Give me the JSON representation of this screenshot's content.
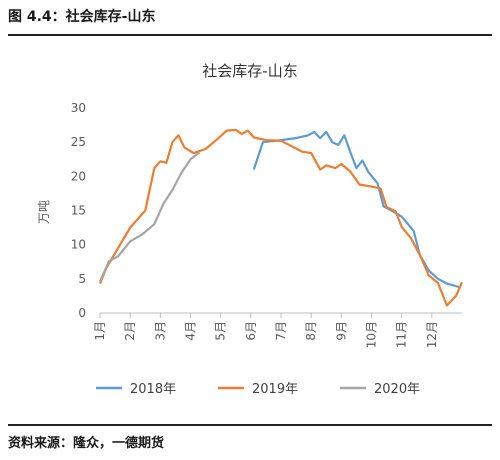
{
  "header": {
    "caption": "图 4.4：社会库存-山东"
  },
  "footer": {
    "source": "资料来源：隆众，一德期货"
  },
  "chart_data": {
    "type": "line",
    "title": "社会库存-山东",
    "ylabel": "万吨",
    "ylim": [
      0,
      30
    ],
    "yticks": [
      0,
      5,
      10,
      15,
      20,
      25,
      30
    ],
    "xlim": [
      1,
      13
    ],
    "xticks": [
      {
        "x": 1,
        "label": "1月"
      },
      {
        "x": 2,
        "label": "2月"
      },
      {
        "x": 3,
        "label": "3月"
      },
      {
        "x": 4,
        "label": "4月"
      },
      {
        "x": 5,
        "label": "5月"
      },
      {
        "x": 6,
        "label": "6月"
      },
      {
        "x": 7,
        "label": "7月"
      },
      {
        "x": 8,
        "label": "8月"
      },
      {
        "x": 9,
        "label": "9月"
      },
      {
        "x": 10,
        "label": "10月"
      },
      {
        "x": 11,
        "label": "11月"
      },
      {
        "x": 12,
        "label": "12月"
      }
    ],
    "grid": false,
    "legend": "bottom",
    "series": [
      {
        "name": "2018年",
        "color": "#5B9BD5",
        "points": [
          [
            6.1,
            21.0
          ],
          [
            6.4,
            25.0
          ],
          [
            7.0,
            25.3
          ],
          [
            7.5,
            25.6
          ],
          [
            7.9,
            26.0
          ],
          [
            8.1,
            26.5
          ],
          [
            8.3,
            25.6
          ],
          [
            8.5,
            26.5
          ],
          [
            8.7,
            25.0
          ],
          [
            8.9,
            24.6
          ],
          [
            9.1,
            26.0
          ],
          [
            9.3,
            23.5
          ],
          [
            9.5,
            21.2
          ],
          [
            9.7,
            22.3
          ],
          [
            9.9,
            20.6
          ],
          [
            10.2,
            19.0
          ],
          [
            10.4,
            15.6
          ],
          [
            10.7,
            14.9
          ],
          [
            11.0,
            14.1
          ],
          [
            11.4,
            12.0
          ],
          [
            11.6,
            8.5
          ],
          [
            11.9,
            6.2
          ],
          [
            12.2,
            5.0
          ],
          [
            12.5,
            4.3
          ],
          [
            12.9,
            3.8
          ]
        ]
      },
      {
        "name": "2019年",
        "color": "#ED7D31",
        "points": [
          [
            1.0,
            4.3
          ],
          [
            1.2,
            6.5
          ],
          [
            1.6,
            9.5
          ],
          [
            2.0,
            12.5
          ],
          [
            2.5,
            15.0
          ],
          [
            2.8,
            21.2
          ],
          [
            3.0,
            22.2
          ],
          [
            3.2,
            22.0
          ],
          [
            3.4,
            25.0
          ],
          [
            3.6,
            26.0
          ],
          [
            3.8,
            24.2
          ],
          [
            4.1,
            23.4
          ],
          [
            4.5,
            24.0
          ],
          [
            4.9,
            25.5
          ],
          [
            5.2,
            26.7
          ],
          [
            5.5,
            26.8
          ],
          [
            5.7,
            26.2
          ],
          [
            5.9,
            26.7
          ],
          [
            6.1,
            25.7
          ],
          [
            6.5,
            25.3
          ],
          [
            7.0,
            25.2
          ],
          [
            7.4,
            24.3
          ],
          [
            7.7,
            23.6
          ],
          [
            8.0,
            23.4
          ],
          [
            8.3,
            21.0
          ],
          [
            8.5,
            21.6
          ],
          [
            8.8,
            21.2
          ],
          [
            9.0,
            21.8
          ],
          [
            9.3,
            20.7
          ],
          [
            9.6,
            18.8
          ],
          [
            10.0,
            18.5
          ],
          [
            10.3,
            18.2
          ],
          [
            10.5,
            15.5
          ],
          [
            10.8,
            14.9
          ],
          [
            11.0,
            12.6
          ],
          [
            11.3,
            11.0
          ],
          [
            11.6,
            8.5
          ],
          [
            11.9,
            5.5
          ],
          [
            12.2,
            4.4
          ],
          [
            12.5,
            1.1
          ],
          [
            12.8,
            2.5
          ],
          [
            13.0,
            4.5
          ]
        ]
      },
      {
        "name": "2020年",
        "color": "#A5A5A5",
        "points": [
          [
            1.0,
            4.6
          ],
          [
            1.3,
            7.6
          ],
          [
            1.6,
            8.3
          ],
          [
            2.0,
            10.5
          ],
          [
            2.4,
            11.5
          ],
          [
            2.8,
            13.0
          ],
          [
            3.1,
            16.0
          ],
          [
            3.4,
            18.0
          ],
          [
            3.7,
            20.5
          ],
          [
            4.0,
            22.5
          ],
          [
            4.3,
            23.5
          ]
        ]
      }
    ]
  }
}
